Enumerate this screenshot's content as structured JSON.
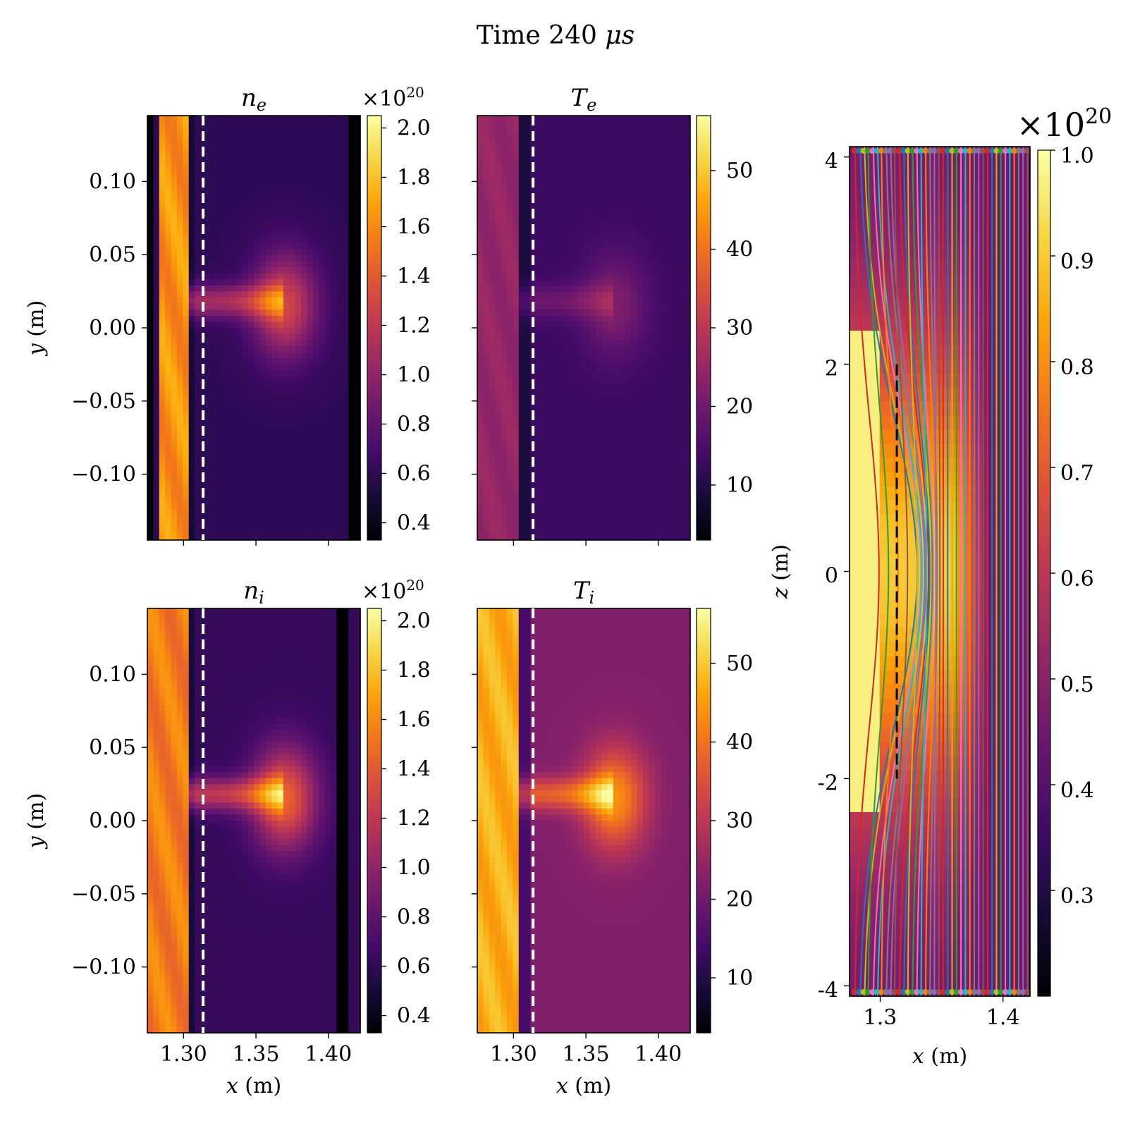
{
  "figure": {
    "title_prefix": "Time 240 ",
    "title_unit": "μs"
  },
  "chart_data": [
    {
      "id": "ne",
      "type": "heatmap",
      "title_base": "n",
      "title_sub": "e",
      "xlabel": "",
      "ylabel": "y (m)",
      "xlim": [
        1.275,
        1.422
      ],
      "ylim": [
        -0.145,
        0.145
      ],
      "x_ticks": [
        1.3,
        1.35,
        1.4
      ],
      "x_tick_labels": [
        "",
        "",
        ""
      ],
      "y_ticks": [
        0.1,
        0.05,
        0.0,
        -0.05,
        -0.1
      ],
      "y_tick_labels": [
        "0.10",
        "0.05",
        "0.00",
        "−0.05",
        "−0.10"
      ],
      "colorbar": {
        "min": 0.33,
        "max": 2.05,
        "ticks": [
          0.4,
          0.6,
          0.8,
          1.0,
          1.2,
          1.4,
          1.6,
          1.8,
          2.0
        ],
        "tick_labels": [
          "0.4",
          "0.6",
          "0.8",
          "1.0",
          "1.2",
          "1.4",
          "1.6",
          "1.8",
          "2.0"
        ],
        "offset_base": "×10",
        "offset_exp": "20",
        "colormap": "inferno"
      },
      "dashed_line_x": 1.3135,
      "field": {
        "wall_value": 1.75,
        "background": 0.6,
        "blob_value": 1.3,
        "blob_center": [
          1.37,
          0.015
        ],
        "dark_stripes": [
          1.277,
          1.418
        ],
        "wall_x": [
          1.283,
          1.303
        ]
      }
    },
    {
      "id": "Te",
      "type": "heatmap",
      "title_base": "T",
      "title_sub": "e",
      "xlabel": "",
      "ylabel": "",
      "xlim": [
        1.275,
        1.422
      ],
      "ylim": [
        -0.145,
        0.145
      ],
      "x_ticks": [
        1.3,
        1.35,
        1.4
      ],
      "x_tick_labels": [
        "",
        "",
        ""
      ],
      "y_ticks": [
        0.1,
        0.05,
        0.0,
        -0.05,
        -0.1
      ],
      "y_tick_labels": [
        "",
        "",
        "",
        "",
        ""
      ],
      "colorbar": {
        "min": 3,
        "max": 57,
        "ticks": [
          10,
          20,
          30,
          40,
          50
        ],
        "tick_labels": [
          "10",
          "20",
          "30",
          "40",
          "50"
        ],
        "offset_base": "",
        "offset_exp": "",
        "colormap": "inferno"
      },
      "dashed_line_x": 1.3135,
      "field": {
        "wall_value": 26,
        "background": 13,
        "blob_value": 22,
        "blob_center": [
          1.37,
          0.015
        ],
        "dark_stripes": [],
        "wall_x": [
          1.276,
          1.305
        ]
      }
    },
    {
      "id": "ni",
      "type": "heatmap",
      "title_base": "n",
      "title_sub": "i",
      "xlabel": "x (m)",
      "ylabel": "y (m)",
      "xlim": [
        1.275,
        1.422
      ],
      "ylim": [
        -0.145,
        0.145
      ],
      "x_ticks": [
        1.3,
        1.35,
        1.4
      ],
      "x_tick_labels": [
        "1.30",
        "1.35",
        "1.40"
      ],
      "y_ticks": [
        0.1,
        0.05,
        0.0,
        -0.05,
        -0.1
      ],
      "y_tick_labels": [
        "0.10",
        "0.05",
        "0.00",
        "−0.05",
        "−0.10"
      ],
      "colorbar": {
        "min": 0.33,
        "max": 2.05,
        "ticks": [
          0.4,
          0.6,
          0.8,
          1.0,
          1.2,
          1.4,
          1.6,
          1.8,
          2.0
        ],
        "tick_labels": [
          "0.4",
          "0.6",
          "0.8",
          "1.0",
          "1.2",
          "1.4",
          "1.6",
          "1.8",
          "2.0"
        ],
        "offset_base": "×10",
        "offset_exp": "20",
        "colormap": "inferno"
      },
      "dashed_line_x": 1.3135,
      "field": {
        "wall_value": 1.65,
        "background": 0.62,
        "blob_value": 1.45,
        "blob_center": [
          1.37,
          0.015
        ],
        "dark_stripes": [
          1.41
        ],
        "wall_x": [
          1.276,
          1.303
        ]
      }
    },
    {
      "id": "Ti",
      "type": "heatmap",
      "title_base": "T",
      "title_sub": "i",
      "xlabel": "x (m)",
      "ylabel": "",
      "xlim": [
        1.275,
        1.422
      ],
      "ylim": [
        -0.145,
        0.145
      ],
      "x_ticks": [
        1.3,
        1.35,
        1.4
      ],
      "x_tick_labels": [
        "1.30",
        "1.35",
        "1.40"
      ],
      "y_ticks": [
        0.1,
        0.05,
        0.0,
        -0.05,
        -0.1
      ],
      "y_tick_labels": [
        "",
        "",
        "",
        "",
        ""
      ],
      "colorbar": {
        "min": 3,
        "max": 57,
        "ticks": [
          10,
          20,
          30,
          40,
          50
        ],
        "tick_labels": [
          "10",
          "20",
          "30",
          "40",
          "50"
        ],
        "offset_base": "",
        "offset_exp": "",
        "colormap": "inferno"
      },
      "dashed_line_x": 1.3135,
      "field": {
        "wall_value": 50,
        "background": 22,
        "blob_value": 44,
        "blob_center": [
          1.37,
          0.015
        ],
        "dark_stripes": [],
        "wall_x": [
          1.276,
          1.305
        ]
      }
    },
    {
      "id": "fieldlines",
      "type": "heatmap",
      "title_base": "",
      "title_sub": "",
      "xlabel": "x (m)",
      "ylabel": "z (m)",
      "xlim": [
        1.275,
        1.422
      ],
      "ylim": [
        -4.1,
        4.1
      ],
      "x_ticks": [
        1.3,
        1.4
      ],
      "x_tick_labels": [
        "1.3",
        "1.4"
      ],
      "y_ticks": [
        4,
        2,
        0,
        -2,
        -4
      ],
      "y_tick_labels": [
        "4",
        "2",
        "0",
        "-2",
        "-4"
      ],
      "colorbar": {
        "min": 0.2,
        "max": 1.0,
        "ticks": [
          0.3,
          0.4,
          0.5,
          0.6,
          0.7,
          0.8,
          0.9,
          1.0
        ],
        "tick_labels": [
          "0.3",
          "0.4",
          "0.5",
          "0.6",
          "0.7",
          "0.8",
          "0.9",
          "1.0"
        ],
        "offset_base": "×10",
        "offset_exp": "20",
        "colormap": "inferno"
      },
      "dashed_line_x": 1.3135,
      "dashed_line_z": [
        -2,
        2
      ],
      "field_lines": {
        "count": 40,
        "x_start": 1.279,
        "x_end": 1.42,
        "line_colors": [
          "#d62728",
          "#1f77b4",
          "#bcbd22",
          "#2ca02c",
          "#e377c2",
          "#17becf",
          "#ff7f0e",
          "#7f7f7f",
          "#9467bd",
          "#8c564b"
        ]
      }
    }
  ]
}
